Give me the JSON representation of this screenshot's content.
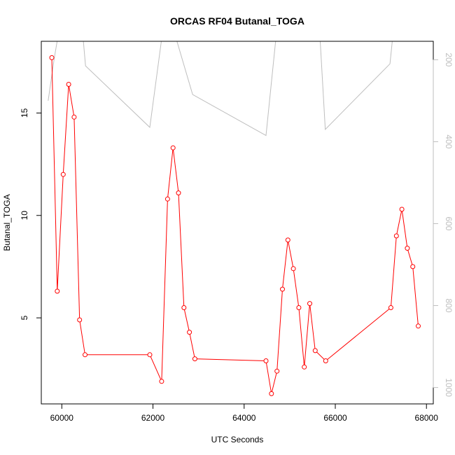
{
  "chart_data": {
    "type": "line",
    "title": "ORCAS RF04 Butanal_TOGA",
    "xlabel": "UTC Seconds",
    "ylabel": "Butanal_TOGA",
    "xlim": [
      59550,
      68150
    ],
    "ylim": [
      0.8,
      18.5
    ],
    "x_ticks": [
      "60000",
      "62000",
      "64000",
      "66000",
      "68000"
    ],
    "y_ticks": [
      "5",
      "10",
      "15"
    ],
    "y2_lim": [
      1040,
      155
    ],
    "y2_ticks": [
      "200",
      "400",
      "600",
      "800",
      "1000"
    ],
    "grid": false,
    "legend": "none",
    "colors": {
      "series": "#ff0000",
      "secondary": "#bebebe",
      "axis": "#000000"
    },
    "series": [
      {
        "axis": "left",
        "marker": "open-circle",
        "x": [
          59780,
          59900,
          60030,
          60150,
          60270,
          60390,
          60510,
          61930,
          62190,
          62320,
          62440,
          62560,
          62680,
          62800,
          62920,
          64480,
          64600,
          64720,
          64840,
          64960,
          65080,
          65200,
          65320,
          65440,
          65560,
          65790,
          67220,
          67340,
          67460,
          67580,
          67700,
          67820
        ],
        "y": [
          17.7,
          6.3,
          12.0,
          16.4,
          14.8,
          4.9,
          3.2,
          3.2,
          1.9,
          10.8,
          13.3,
          11.1,
          5.5,
          4.3,
          3.0,
          2.9,
          1.3,
          2.4,
          6.4,
          8.8,
          7.4,
          5.5,
          2.6,
          5.7,
          3.4,
          2.9,
          5.5,
          9.0,
          10.3,
          8.4,
          7.5,
          4.6
        ]
      },
      {
        "axis": "right",
        "marker": "none",
        "x": [
          59700,
          59830,
          59980,
          60430,
          60520,
          61930,
          62250,
          62380,
          62870,
          64480,
          64740,
          64880,
          65640,
          65780,
          67200,
          67300
        ],
        "y": [
          300,
          200,
          100,
          100,
          215,
          365,
          100,
          100,
          285,
          385,
          100,
          100,
          100,
          370,
          210,
          100
        ]
      }
    ]
  }
}
